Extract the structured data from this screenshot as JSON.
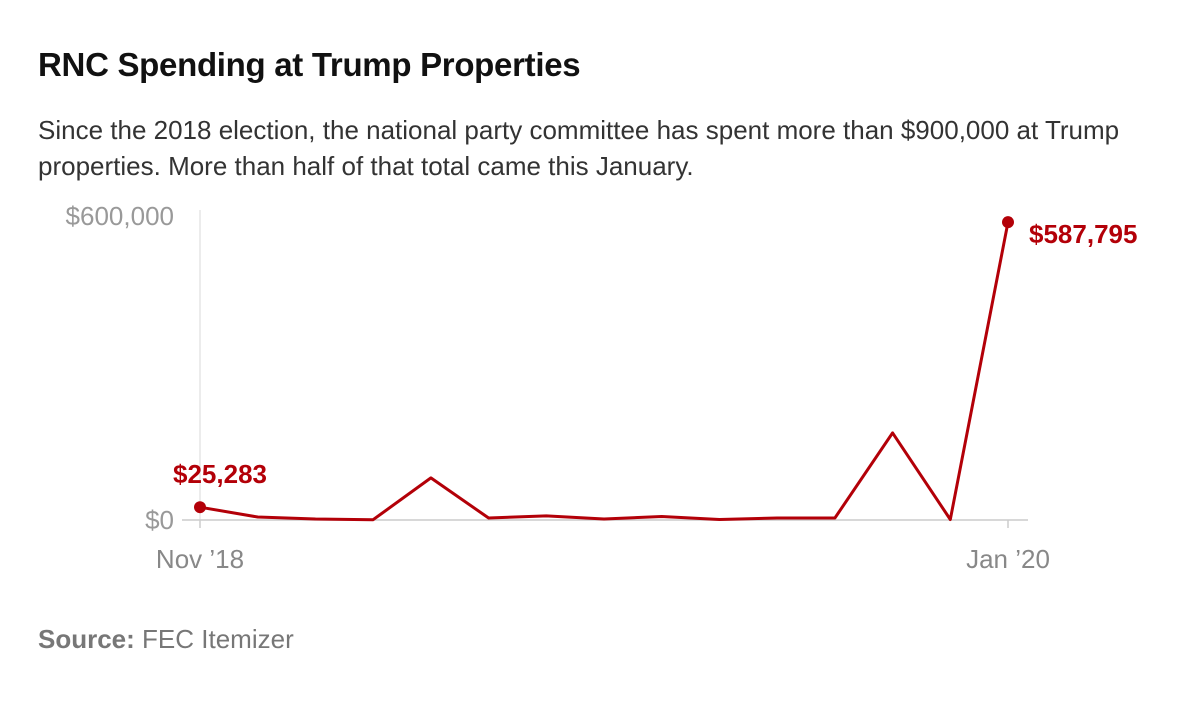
{
  "title": "RNC Spending at Trump Properties",
  "subtitle": "Since the 2018 election, the national party committee has spent more than $900,000 at Trump properties. More than half of that total came this January.",
  "source": {
    "label": "Source:",
    "text": "FEC Itemizer"
  },
  "colors": {
    "line": "#b30008",
    "axis_text": "#999999",
    "gridline": "#e6e6e6"
  },
  "chart_data": {
    "type": "line",
    "title": "RNC Spending at Trump Properties",
    "x": [
      "2018-11",
      "2018-12",
      "2019-01",
      "2019-02",
      "2019-03",
      "2019-04",
      "2019-05",
      "2019-06",
      "2019-07",
      "2019-08",
      "2019-09",
      "2019-10",
      "2019-11",
      "2019-12",
      "2020-01"
    ],
    "series": [
      {
        "values": [
          25283,
          6000,
          2000,
          500,
          83000,
          4000,
          8000,
          2000,
          7000,
          1000,
          4000,
          4000,
          172000,
          1000,
          587795
        ]
      }
    ],
    "x_tick_labels": [
      {
        "index": 0,
        "label": "Nov ’18"
      },
      {
        "index": 14,
        "label": "Jan ’20"
      }
    ],
    "y_tick_labels": [
      {
        "value": 0,
        "label": "$0"
      },
      {
        "value": 600000,
        "label": "$600,000"
      }
    ],
    "ylim": [
      0,
      600000
    ],
    "annotations": [
      {
        "index": 0,
        "label": "$25,283"
      },
      {
        "index": 14,
        "label": "$587,795"
      }
    ],
    "xlabel": "",
    "ylabel": "",
    "grid": false,
    "legend": "none"
  }
}
